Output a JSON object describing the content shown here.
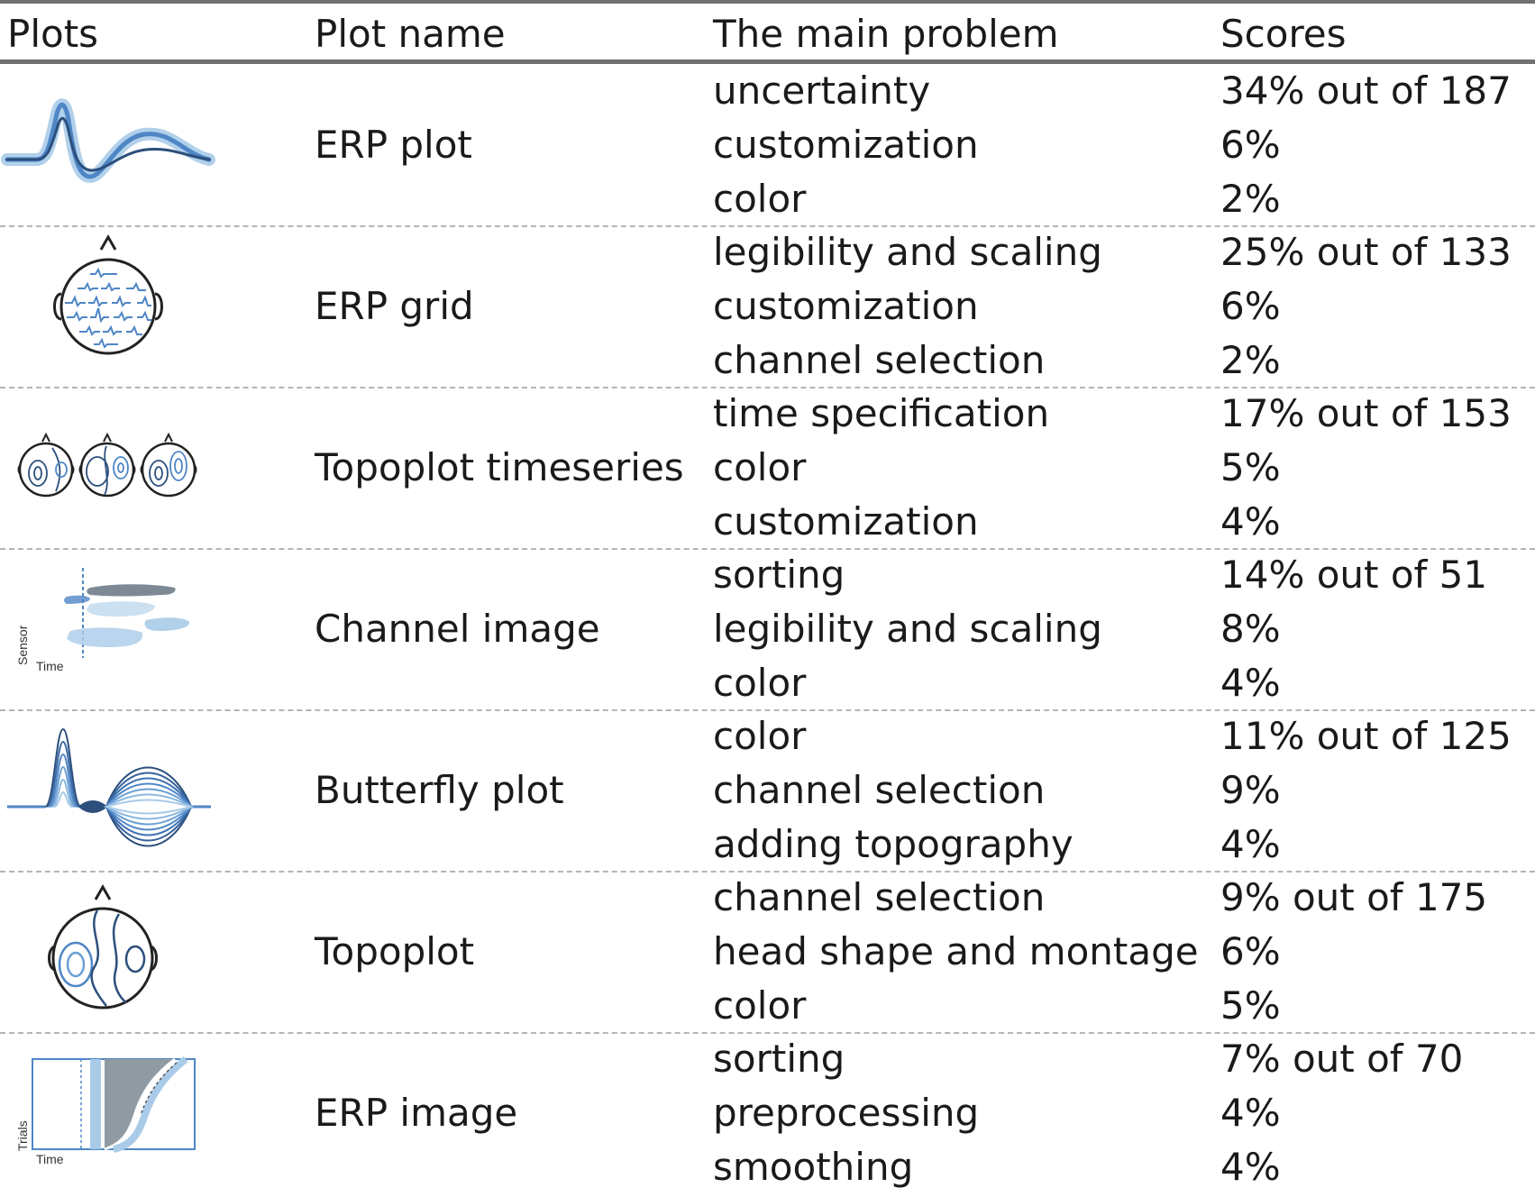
{
  "header": {
    "col_plots": "Plots",
    "col_plot_name": "Plot name",
    "col_problem": "The main problem",
    "col_scores": "Scores"
  },
  "rows": [
    {
      "plot_name": "ERP plot",
      "icon": "erp-plot-icon",
      "problems": [
        {
          "problem": "uncertainty",
          "score": "34% out of 187"
        },
        {
          "problem": "customization",
          "score": "6%"
        },
        {
          "problem": "color",
          "score": "2%"
        }
      ]
    },
    {
      "plot_name": "ERP grid",
      "icon": "erp-grid-icon",
      "problems": [
        {
          "problem": "legibility and scaling",
          "score": "25% out of 133"
        },
        {
          "problem": "customization",
          "score": "6%"
        },
        {
          "problem": "channel selection",
          "score": "2%"
        }
      ]
    },
    {
      "plot_name": "Topoplot timeseries",
      "icon": "topoplot-timeseries-icon",
      "problems": [
        {
          "problem": "time specification",
          "score": "17% out of 153"
        },
        {
          "problem": "color",
          "score": "5%"
        },
        {
          "problem": "customization",
          "score": "4%"
        }
      ]
    },
    {
      "plot_name": "Channel image",
      "icon": "channel-image-icon",
      "icon_labels": {
        "y": "Sensor",
        "x": "Time"
      },
      "problems": [
        {
          "problem": "sorting",
          "score": "14% out of 51"
        },
        {
          "problem": "legibility and scaling",
          "score": "8%"
        },
        {
          "problem": "color",
          "score": "4%"
        }
      ]
    },
    {
      "plot_name": "Butterfly plot",
      "icon": "butterfly-plot-icon",
      "problems": [
        {
          "problem": "color",
          "score": "11% out of 125"
        },
        {
          "problem": "channel selection",
          "score": "9%"
        },
        {
          "problem": "adding topography",
          "score": "4%"
        }
      ]
    },
    {
      "plot_name": "Topoplot",
      "icon": "topoplot-icon",
      "problems": [
        {
          "problem": "channel selection",
          "score": "9% out of 175"
        },
        {
          "problem": "head shape and montage",
          "score": "6%"
        },
        {
          "problem": "color",
          "score": "5%"
        }
      ]
    },
    {
      "plot_name": "ERP image",
      "icon": "erp-image-icon",
      "icon_labels": {
        "y": "Trials",
        "x": "Time"
      },
      "problems": [
        {
          "problem": "sorting",
          "score": "7% out of 70"
        },
        {
          "problem": "preprocessing",
          "score": "4%"
        },
        {
          "problem": "smoothing",
          "score": "4%"
        }
      ]
    }
  ],
  "colors": {
    "rule": "#707070",
    "dash": "#b5b5b5",
    "blue_dark": "#2c4f7c",
    "blue_mid": "#4f86c6",
    "blue_light": "#a9cbe8"
  }
}
